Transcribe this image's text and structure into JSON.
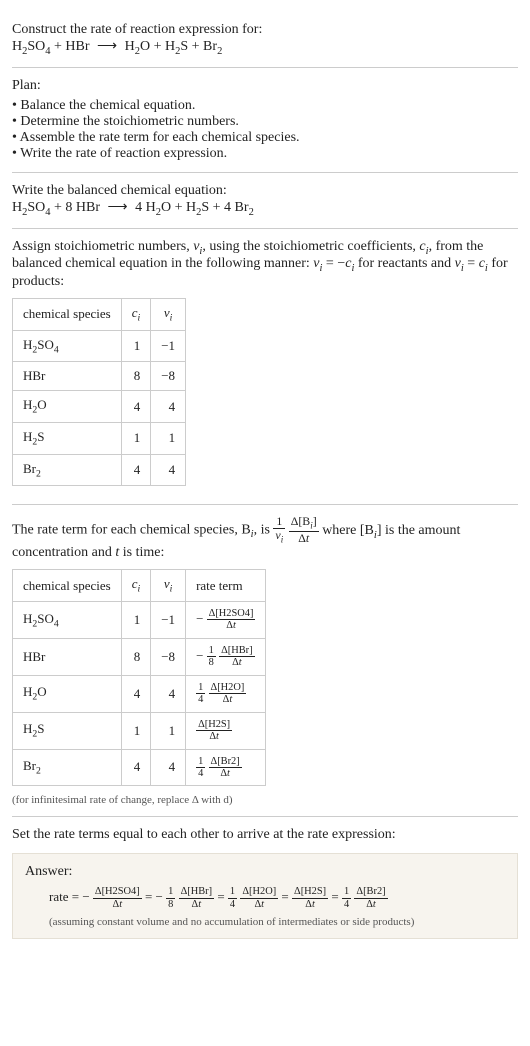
{
  "intro": {
    "title": "Construct the rate of reaction expression for:",
    "equation_html": "H<sub>2</sub>SO<sub>4</sub> + HBr <span class='arrow'>⟶</span> H<sub>2</sub>O + H<sub>2</sub>S + Br<sub>2</sub>"
  },
  "plan": {
    "label": "Plan:",
    "items": [
      "Balance the chemical equation.",
      "Determine the stoichiometric numbers.",
      "Assemble the rate term for each chemical species.",
      "Write the rate of reaction expression."
    ]
  },
  "balanced": {
    "label": "Write the balanced chemical equation:",
    "equation_html": "H<sub>2</sub>SO<sub>4</sub> + 8 HBr <span class='arrow'>⟶</span> 4 H<sub>2</sub>O + H<sub>2</sub>S + 4 Br<sub>2</sub>"
  },
  "stoich": {
    "intro_html": "Assign stoichiometric numbers, <span class='ital'>ν<sub>i</sub></span>, using the stoichiometric coefficients, <span class='ital'>c<sub>i</sub></span>, from the balanced chemical equation in the following manner: <span class='ital'>ν<sub>i</sub></span> = −<span class='ital'>c<sub>i</sub></span> for reactants and <span class='ital'>ν<sub>i</sub></span> = <span class='ital'>c<sub>i</sub></span> for products:",
    "headers": {
      "species": "chemical species",
      "c": "c<sub>i</sub>",
      "nu": "ν<sub>i</sub>"
    },
    "rows": [
      {
        "sp": "H<sub>2</sub>SO<sub>4</sub>",
        "c": "1",
        "nu": "−1"
      },
      {
        "sp": "HBr",
        "c": "8",
        "nu": "−8"
      },
      {
        "sp": "H<sub>2</sub>O",
        "c": "4",
        "nu": "4"
      },
      {
        "sp": "H<sub>2</sub>S",
        "c": "1",
        "nu": "1"
      },
      {
        "sp": "Br<sub>2</sub>",
        "c": "4",
        "nu": "4"
      }
    ]
  },
  "rate_term": {
    "intro_pre": "The rate term for each chemical species, B",
    "intro_post": ", is ",
    "intro_tail_html": " where [B<sub><i>i</i></sub>] is the amount concentration and <span class='ital'>t</span> is time:",
    "headers": {
      "species": "chemical species",
      "c": "c<sub>i</sub>",
      "nu": "ν<sub>i</sub>",
      "rate": "rate term"
    },
    "rows": [
      {
        "sp": "H<sub>2</sub>SO<sub>4</sub>",
        "c": "1",
        "nu": "−1",
        "rate_html": "− <span class='frac smallfrac'><span class='num'>Δ[H2SO4]</span><span class='den'>Δ<i>t</i></span></span>"
      },
      {
        "sp": "HBr",
        "c": "8",
        "nu": "−8",
        "rate_html": "− <span class='frac smallfrac'><span class='num'>1</span><span class='den'>8</span></span> <span class='frac smallfrac'><span class='num'>Δ[HBr]</span><span class='den'>Δ<i>t</i></span></span>"
      },
      {
        "sp": "H<sub>2</sub>O",
        "c": "4",
        "nu": "4",
        "rate_html": "<span class='frac smallfrac'><span class='num'>1</span><span class='den'>4</span></span> <span class='frac smallfrac'><span class='num'>Δ[H2O]</span><span class='den'>Δ<i>t</i></span></span>"
      },
      {
        "sp": "H<sub>2</sub>S",
        "c": "1",
        "nu": "1",
        "rate_html": "<span class='frac smallfrac'><span class='num'>Δ[H2S]</span><span class='den'>Δ<i>t</i></span></span>"
      },
      {
        "sp": "Br<sub>2</sub>",
        "c": "4",
        "nu": "4",
        "rate_html": "<span class='frac smallfrac'><span class='num'>1</span><span class='den'>4</span></span> <span class='frac smallfrac'><span class='num'>Δ[Br2]</span><span class='den'>Δ<i>t</i></span></span>"
      }
    ],
    "footnote": "(for infinitesimal rate of change, replace Δ with d)"
  },
  "final": {
    "intro": "Set the rate terms equal to each other to arrive at the rate expression:",
    "answer_label": "Answer:",
    "rate_html": "rate = − <span class='frac smallfrac'><span class='num'>Δ[H2SO4]</span><span class='den'>Δ<i>t</i></span></span> = − <span class='frac smallfrac'><span class='num'>1</span><span class='den'>8</span></span> <span class='frac smallfrac'><span class='num'>Δ[HBr]</span><span class='den'>Δ<i>t</i></span></span> = <span class='frac smallfrac'><span class='num'>1</span><span class='den'>4</span></span> <span class='frac smallfrac'><span class='num'>Δ[H2O]</span><span class='den'>Δ<i>t</i></span></span> = <span class='frac smallfrac'><span class='num'>Δ[H2S]</span><span class='den'>Δ<i>t</i></span></span> = <span class='frac smallfrac'><span class='num'>1</span><span class='den'>4</span></span> <span class='frac smallfrac'><span class='num'>Δ[Br2]</span><span class='den'>Δ<i>t</i></span></span>",
    "assume": "(assuming constant volume and no accumulation of intermediates or side products)"
  }
}
